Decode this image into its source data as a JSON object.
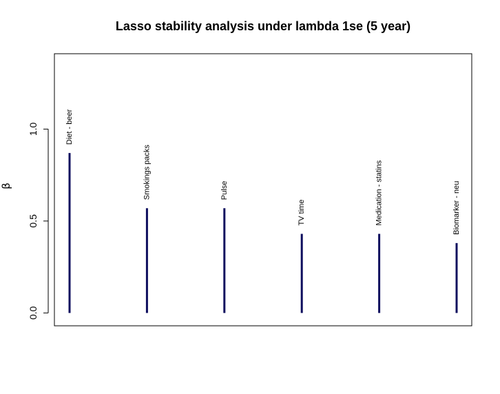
{
  "chart_data": {
    "type": "bar",
    "title": "Lasso stability analysis under lambda 1se (5 year)",
    "xlabel": "",
    "ylabel": "β",
    "ylim": [
      -0.07,
      1.41
    ],
    "yticks": [
      0.0,
      0.5,
      1.0
    ],
    "ytick_labels": [
      "0.0",
      "0.5",
      "1.0"
    ],
    "categories": [
      "Diet - beer",
      "Smokings packs",
      "Pulse",
      "TV time",
      "Medication - statins",
      "Biomarker - neu"
    ],
    "values": [
      0.87,
      0.57,
      0.57,
      0.43,
      0.43,
      0.38
    ],
    "bar_color": "#0d0d5e",
    "grid": false
  }
}
